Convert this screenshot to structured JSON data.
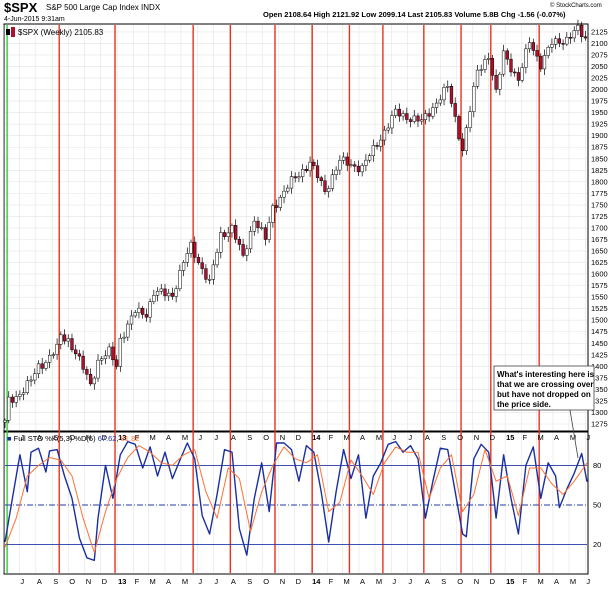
{
  "header": {
    "symbol": "$SPX",
    "name": "S&P 500 Large Cap Index",
    "exchange": "INDX",
    "datetime": "4-Jun-2015 9:31am",
    "quote": "Open 2108.64  High 2121.92  Low 2099.14  Last 2105.83  Volume 5.8B  Chg -1.56 (-0.07%)",
    "watermark": "© StockCharts.com"
  },
  "colors": {
    "up_candle": "#ffffff",
    "down_candle": "#b01030",
    "candle_outline": "#000000",
    "event_line": "#e8321e",
    "start_line": "#33cc33",
    "stoch_k": "#1a2fa0",
    "stoch_d": "#ff7033",
    "stoch_ref": "#2238a8",
    "grid": "#e4e4e4"
  },
  "chart_data": [
    {
      "type": "candlestick",
      "legend": "$SPX (Weekly) 2105.83",
      "x_start": "2012-06-04",
      "x_end": "2015-06-04",
      "x_interval": "weekly",
      "ylim": [
        1262,
        2140
      ],
      "y_ticks": [
        1275,
        1300,
        1325,
        1350,
        1375,
        1400,
        1425,
        1450,
        1475,
        1500,
        1525,
        1550,
        1575,
        1600,
        1625,
        1650,
        1675,
        1700,
        1725,
        1750,
        1775,
        1800,
        1825,
        1850,
        1875,
        1900,
        1925,
        1950,
        1975,
        2000,
        2025,
        2050,
        2075,
        2100,
        2125
      ],
      "close_path": [
        [
          "2012-06-04",
          1278
        ],
        [
          "2012-06-11",
          1325
        ],
        [
          "2012-06-25",
          1335
        ],
        [
          "2012-07-09",
          1350
        ],
        [
          "2012-07-23",
          1368
        ],
        [
          "2012-08-06",
          1400
        ],
        [
          "2012-08-20",
          1412
        ],
        [
          "2012-09-10",
          1438
        ],
        [
          "2012-09-17",
          1465
        ],
        [
          "2012-10-01",
          1458
        ],
        [
          "2012-10-15",
          1430
        ],
        [
          "2012-11-12",
          1360
        ],
        [
          "2012-11-26",
          1412
        ],
        [
          "2012-12-17",
          1430
        ],
        [
          "2012-12-31",
          1402
        ],
        [
          "2013-01-07",
          1460
        ],
        [
          "2013-02-04",
          1518
        ],
        [
          "2013-02-25",
          1515
        ],
        [
          "2013-03-11",
          1560
        ],
        [
          "2013-04-15",
          1555
        ],
        [
          "2013-05-06",
          1625
        ],
        [
          "2013-05-20",
          1660
        ],
        [
          "2013-06-24",
          1580
        ],
        [
          "2013-07-15",
          1685
        ],
        [
          "2013-08-05",
          1700
        ],
        [
          "2013-08-26",
          1635
        ],
        [
          "2013-09-16",
          1720
        ],
        [
          "2013-10-07",
          1675
        ],
        [
          "2013-10-21",
          1745
        ],
        [
          "2013-11-25",
          1800
        ],
        [
          "2013-12-30",
          1842
        ],
        [
          "2014-01-27",
          1780
        ],
        [
          "2014-02-24",
          1845
        ],
        [
          "2014-04-07",
          1830
        ],
        [
          "2014-04-28",
          1870
        ],
        [
          "2014-06-09",
          1950
        ],
        [
          "2014-07-28",
          1930
        ],
        [
          "2014-09-15",
          2005
        ],
        [
          "2014-10-13",
          1870
        ],
        [
          "2014-11-10",
          2040
        ],
        [
          "2014-12-01",
          2075
        ],
        [
          "2014-12-15",
          1990
        ],
        [
          "2014-12-29",
          2080
        ],
        [
          "2015-01-26",
          2020
        ],
        [
          "2015-02-16",
          2105
        ],
        [
          "2015-03-09",
          2055
        ],
        [
          "2015-03-30",
          2100
        ],
        [
          "2015-04-27",
          2110
        ],
        [
          "2015-05-18",
          2130
        ],
        [
          "2015-06-04",
          2106
        ]
      ]
    },
    {
      "type": "line",
      "legend": "Full STO %K(5,3) %D(5)",
      "legend_k": "67.62",
      "legend_d": "81.82",
      "ylim": [
        0,
        100
      ],
      "reference_lines": [
        80,
        50,
        20
      ],
      "y_ticks": [
        80,
        50,
        20
      ],
      "series": [
        {
          "name": "%K(5,3)",
          "points": [
            [
              "2012-06-04",
              22
            ],
            [
              "2012-06-18",
              55
            ],
            [
              "2012-07-02",
              88
            ],
            [
              "2012-07-16",
              60
            ],
            [
              "2012-07-23",
              90
            ],
            [
              "2012-08-06",
              93
            ],
            [
              "2012-08-20",
              75
            ],
            [
              "2012-08-27",
              91
            ],
            [
              "2012-09-10",
              92
            ],
            [
              "2012-09-24",
              72
            ],
            [
              "2012-10-08",
              55
            ],
            [
              "2012-10-22",
              25
            ],
            [
              "2012-11-05",
              10
            ],
            [
              "2012-11-19",
              8
            ],
            [
              "2012-11-26",
              40
            ],
            [
              "2012-12-10",
              80
            ],
            [
              "2012-12-24",
              55
            ],
            [
              "2013-01-07",
              88
            ],
            [
              "2013-01-21",
              98
            ],
            [
              "2013-02-04",
              96
            ],
            [
              "2013-02-18",
              78
            ],
            [
              "2013-03-04",
              94
            ],
            [
              "2013-03-18",
              72
            ],
            [
              "2013-04-01",
              90
            ],
            [
              "2013-04-15",
              70
            ],
            [
              "2013-04-29",
              84
            ],
            [
              "2013-05-13",
              97
            ],
            [
              "2013-05-27",
              85
            ],
            [
              "2013-06-10",
              42
            ],
            [
              "2013-06-24",
              28
            ],
            [
              "2013-07-08",
              58
            ],
            [
              "2013-07-22",
              92
            ],
            [
              "2013-08-05",
              90
            ],
            [
              "2013-08-19",
              32
            ],
            [
              "2013-09-02",
              12
            ],
            [
              "2013-09-16",
              55
            ],
            [
              "2013-09-30",
              82
            ],
            [
              "2013-10-14",
              45
            ],
            [
              "2013-10-28",
              97
            ],
            [
              "2013-11-11",
              97
            ],
            [
              "2013-11-25",
              92
            ],
            [
              "2013-12-09",
              68
            ],
            [
              "2013-12-23",
              95
            ],
            [
              "2014-01-06",
              90
            ],
            [
              "2014-01-20",
              60
            ],
            [
              "2014-02-03",
              22
            ],
            [
              "2014-02-17",
              60
            ],
            [
              "2014-03-03",
              92
            ],
            [
              "2014-03-17",
              70
            ],
            [
              "2014-03-31",
              88
            ],
            [
              "2014-04-14",
              40
            ],
            [
              "2014-04-28",
              72
            ],
            [
              "2014-05-12",
              82
            ],
            [
              "2014-05-26",
              96
            ],
            [
              "2014-06-09",
              98
            ],
            [
              "2014-06-23",
              90
            ],
            [
              "2014-07-07",
              95
            ],
            [
              "2014-07-21",
              85
            ],
            [
              "2014-08-04",
              40
            ],
            [
              "2014-08-18",
              68
            ],
            [
              "2014-09-01",
              93
            ],
            [
              "2014-09-15",
              92
            ],
            [
              "2014-09-29",
              60
            ],
            [
              "2014-10-13",
              28
            ],
            [
              "2014-10-20",
              26
            ],
            [
              "2014-11-03",
              85
            ],
            [
              "2014-11-17",
              96
            ],
            [
              "2014-12-01",
              90
            ],
            [
              "2014-12-15",
              40
            ],
            [
              "2014-12-29",
              88
            ],
            [
              "2015-01-12",
              55
            ],
            [
              "2015-01-26",
              28
            ],
            [
              "2015-02-09",
              80
            ],
            [
              "2015-02-23",
              94
            ],
            [
              "2015-03-09",
              55
            ],
            [
              "2015-03-23",
              82
            ],
            [
              "2015-04-06",
              72
            ],
            [
              "2015-04-13",
              48
            ],
            [
              "2015-04-27",
              62
            ],
            [
              "2015-05-11",
              74
            ],
            [
              "2015-05-25",
              89
            ],
            [
              "2015-06-04",
              67.62
            ]
          ]
        },
        {
          "name": "%D(5)",
          "points": [
            [
              "2012-06-04",
              18
            ],
            [
              "2012-06-25",
              40
            ],
            [
              "2012-07-16",
              72
            ],
            [
              "2012-08-06",
              80
            ],
            [
              "2012-08-27",
              86
            ],
            [
              "2012-09-17",
              84
            ],
            [
              "2012-10-08",
              72
            ],
            [
              "2012-10-29",
              40
            ],
            [
              "2012-11-19",
              14
            ],
            [
              "2012-12-10",
              45
            ],
            [
              "2012-12-31",
              70
            ],
            [
              "2013-01-21",
              86
            ],
            [
              "2013-02-11",
              95
            ],
            [
              "2013-03-04",
              90
            ],
            [
              "2013-03-25",
              82
            ],
            [
              "2013-04-15",
              80
            ],
            [
              "2013-05-06",
              88
            ],
            [
              "2013-05-27",
              92
            ],
            [
              "2013-06-17",
              60
            ],
            [
              "2013-07-08",
              40
            ],
            [
              "2013-07-29",
              78
            ],
            [
              "2013-08-19",
              70
            ],
            [
              "2013-09-09",
              30
            ],
            [
              "2013-09-30",
              60
            ],
            [
              "2013-10-21",
              80
            ],
            [
              "2013-11-11",
              94
            ],
            [
              "2013-12-02",
              85
            ],
            [
              "2013-12-23",
              82
            ],
            [
              "2014-01-13",
              88
            ],
            [
              "2014-02-03",
              45
            ],
            [
              "2014-02-24",
              52
            ],
            [
              "2014-03-17",
              84
            ],
            [
              "2014-04-07",
              72
            ],
            [
              "2014-04-28",
              58
            ],
            [
              "2014-05-19",
              82
            ],
            [
              "2014-06-09",
              94
            ],
            [
              "2014-06-30",
              90
            ],
            [
              "2014-07-21",
              90
            ],
            [
              "2014-08-11",
              55
            ],
            [
              "2014-09-01",
              78
            ],
            [
              "2014-09-22",
              88
            ],
            [
              "2014-10-13",
              45
            ],
            [
              "2014-11-03",
              58
            ],
            [
              "2014-11-24",
              92
            ],
            [
              "2014-12-15",
              68
            ],
            [
              "2015-01-05",
              72
            ],
            [
              "2015-01-26",
              42
            ],
            [
              "2015-02-16",
              78
            ],
            [
              "2015-03-09",
              78
            ],
            [
              "2015-03-30",
              66
            ],
            [
              "2015-04-20",
              58
            ],
            [
              "2015-05-11",
              68
            ],
            [
              "2015-06-04",
              81.82
            ]
          ]
        }
      ]
    }
  ],
  "x_axis": {
    "labels": [
      [
        "2012-06-01",
        "J"
      ],
      [
        "2012-07-01",
        "J"
      ],
      [
        "2012-08-01",
        "A"
      ],
      [
        "2012-09-01",
        "S"
      ],
      [
        "2012-10-01",
        "O"
      ],
      [
        "2012-11-01",
        "N"
      ],
      [
        "2012-12-01",
        "D"
      ],
      [
        "2013-01-01",
        "13"
      ],
      [
        "2013-02-01",
        "F"
      ],
      [
        "2013-03-01",
        "M"
      ],
      [
        "2013-04-01",
        "A"
      ],
      [
        "2013-05-01",
        "M"
      ],
      [
        "2013-06-01",
        "J"
      ],
      [
        "2013-07-01",
        "J"
      ],
      [
        "2013-08-01",
        "A"
      ],
      [
        "2013-09-01",
        "S"
      ],
      [
        "2013-10-01",
        "O"
      ],
      [
        "2013-11-01",
        "N"
      ],
      [
        "2013-12-01",
        "D"
      ],
      [
        "2014-01-01",
        "14"
      ],
      [
        "2014-02-01",
        "F"
      ],
      [
        "2014-03-01",
        "M"
      ],
      [
        "2014-04-01",
        "A"
      ],
      [
        "2014-05-01",
        "M"
      ],
      [
        "2014-06-01",
        "J"
      ],
      [
        "2014-07-01",
        "J"
      ],
      [
        "2014-08-01",
        "A"
      ],
      [
        "2014-09-01",
        "S"
      ],
      [
        "2014-10-01",
        "O"
      ],
      [
        "2014-11-01",
        "N"
      ],
      [
        "2014-12-01",
        "D"
      ],
      [
        "2015-01-01",
        "15"
      ],
      [
        "2015-02-01",
        "F"
      ],
      [
        "2015-03-01",
        "M"
      ],
      [
        "2015-04-01",
        "A"
      ],
      [
        "2015-05-01",
        "M"
      ],
      [
        "2015-06-01",
        "J"
      ]
    ]
  },
  "event_lines": {
    "green": [
      "2012-06-08"
    ],
    "red": [
      "2012-09-14",
      "2012-12-28",
      "2013-05-24",
      "2013-08-02",
      "2013-10-25",
      "2014-01-03",
      "2014-03-14",
      "2014-05-16",
      "2014-08-01",
      "2014-10-10",
      "2014-12-05",
      "2015-03-06"
    ]
  },
  "annotation": {
    "lines": [
      "What's interesting here is",
      "that we are crossing over",
      "but have not dropped on",
      "the price side."
    ]
  }
}
